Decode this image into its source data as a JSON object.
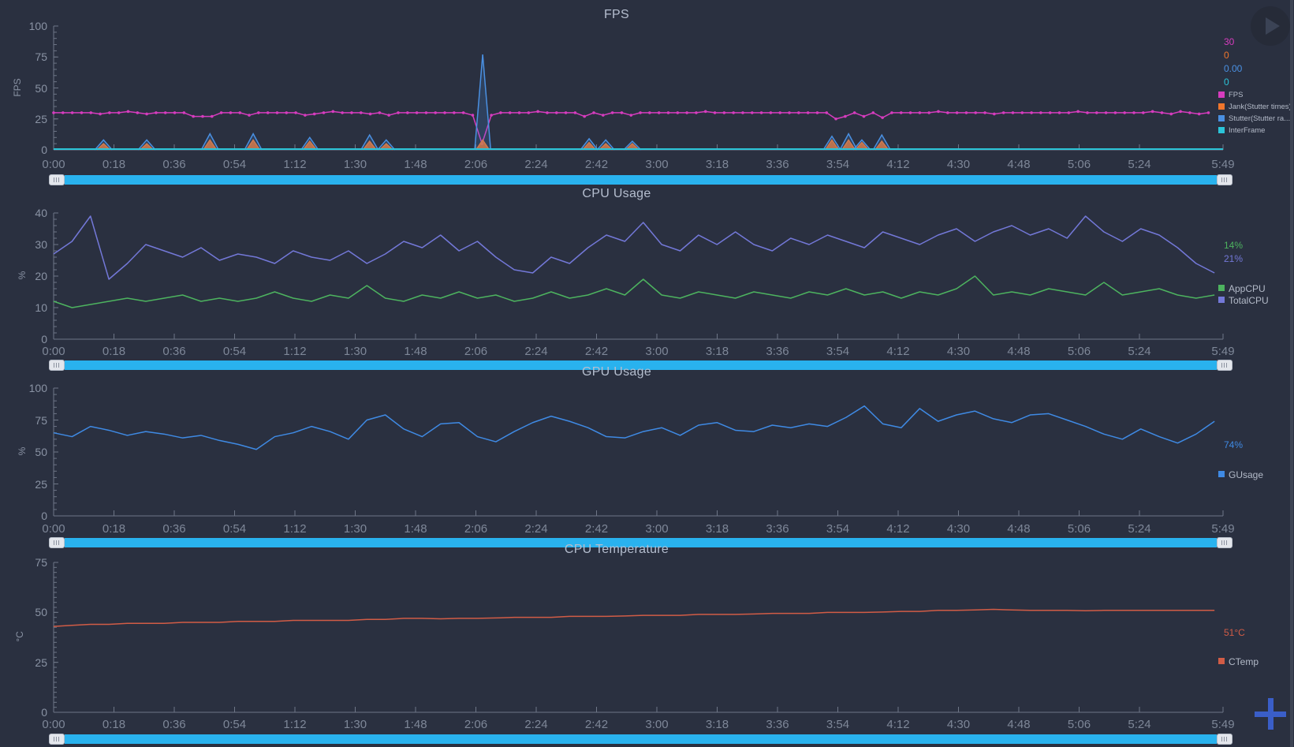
{
  "ui": {
    "background": "#2a3040",
    "scrollbar": {
      "bar_color": "#29b2ee",
      "handle_color": "#e3e6ec"
    },
    "accent_plus": "#3a5ec8"
  },
  "time_axis": {
    "labels": [
      "0:00",
      "0:18",
      "0:36",
      "0:54",
      "1:12",
      "1:30",
      "1:48",
      "2:06",
      "2:24",
      "2:42",
      "3:00",
      "3:18",
      "3:36",
      "3:54",
      "4:12",
      "4:30",
      "4:48",
      "5:06",
      "5:24",
      "5:49"
    ],
    "start": "0:00",
    "end": "5:49",
    "duration_seconds": 349
  },
  "chart_data": [
    {
      "type": "line",
      "title": "FPS",
      "ylabel": "FPS",
      "ylim": [
        0,
        100
      ],
      "yticks": [
        0,
        25,
        50,
        75,
        100
      ],
      "legend_position": "right",
      "grid": false,
      "series": [
        {
          "name": "FPS",
          "color": "#d63cbe",
          "current": "30",
          "style": "dotted-line",
          "sample_interval_s": 2.8,
          "values": [
            30,
            30,
            30,
            30,
            30,
            29,
            30,
            30,
            31,
            30,
            29,
            30,
            30,
            30,
            30,
            27,
            27,
            27,
            30,
            30,
            30,
            28,
            30,
            30,
            30,
            30,
            30,
            28,
            29,
            30,
            31,
            30,
            30,
            30,
            29,
            30,
            28,
            30,
            30,
            30,
            30,
            30,
            30,
            30,
            30,
            28,
            5,
            28,
            30,
            30,
            30,
            30,
            31,
            30,
            30,
            30,
            30,
            27,
            30,
            28,
            30,
            30,
            28,
            30,
            30,
            30,
            30,
            30,
            30,
            30,
            31,
            30,
            30,
            30,
            30,
            30,
            30,
            30,
            30,
            30,
            30,
            30,
            30,
            30,
            25,
            27,
            30,
            27,
            30,
            26,
            30,
            30,
            30,
            30,
            30,
            31,
            30,
            30,
            30,
            30,
            30,
            29,
            30,
            30,
            30,
            30,
            30,
            30,
            30,
            30,
            31,
            30,
            30,
            30,
            30,
            30,
            30,
            30,
            31,
            30,
            29,
            31,
            30,
            29,
            30
          ]
        },
        {
          "name": "Jank(Stutter times)",
          "color": "#f0762c",
          "current": "0",
          "style": "spikes",
          "spikes": [
            [
              15,
              5
            ],
            [
              28,
              5
            ],
            [
              47,
              8
            ],
            [
              60,
              8
            ],
            [
              77,
              7
            ],
            [
              95,
              7
            ],
            [
              100,
              5
            ],
            [
              129,
              8
            ],
            [
              161,
              6
            ],
            [
              166,
              5
            ],
            [
              174,
              5
            ],
            [
              234,
              8
            ],
            [
              239,
              8
            ],
            [
              243,
              6
            ],
            [
              249,
              7
            ]
          ]
        },
        {
          "name": "Stutter(Stutter ra...",
          "color": "#4a90e2",
          "current": "0.00",
          "style": "spikes",
          "spikes": [
            [
              15,
              8
            ],
            [
              28,
              8
            ],
            [
              47,
              13
            ],
            [
              60,
              13
            ],
            [
              77,
              10
            ],
            [
              95,
              12
            ],
            [
              100,
              8
            ],
            [
              129,
              77
            ],
            [
              161,
              9
            ],
            [
              166,
              8
            ],
            [
              174,
              7
            ],
            [
              234,
              11
            ],
            [
              239,
              13
            ],
            [
              243,
              8
            ],
            [
              249,
              12
            ]
          ]
        },
        {
          "name": "InterFrame",
          "color": "#2bc4d8",
          "current": "0",
          "style": "flat",
          "value": 0
        }
      ]
    },
    {
      "type": "line",
      "title": "CPU Usage",
      "ylabel": "%",
      "ylim": [
        0,
        40
      ],
      "yticks": [
        0,
        10,
        20,
        30,
        40
      ],
      "legend_position": "right",
      "grid": false,
      "series": [
        {
          "name": "AppCPU",
          "color": "#4db35f",
          "current": "14%",
          "style": "line",
          "sample_interval_s": 5.54,
          "values": [
            12,
            10,
            11,
            12,
            13,
            12,
            13,
            14,
            12,
            13,
            12,
            13,
            15,
            13,
            12,
            14,
            13,
            17,
            13,
            12,
            14,
            13,
            15,
            13,
            14,
            12,
            13,
            15,
            13,
            14,
            16,
            14,
            19,
            14,
            13,
            15,
            14,
            13,
            15,
            14,
            13,
            15,
            14,
            16,
            14,
            15,
            13,
            15,
            14,
            16,
            20,
            14,
            15,
            14,
            16,
            15,
            14,
            18,
            14,
            15,
            16,
            14,
            13,
            14
          ]
        },
        {
          "name": "TotalCPU",
          "color": "#7378d8",
          "current": "21%",
          "style": "line",
          "sample_interval_s": 5.54,
          "values": [
            27,
            31,
            39,
            19,
            24,
            30,
            28,
            26,
            29,
            25,
            27,
            26,
            24,
            28,
            26,
            25,
            28,
            24,
            27,
            31,
            29,
            33,
            28,
            31,
            26,
            22,
            21,
            26,
            24,
            29,
            33,
            31,
            37,
            30,
            28,
            33,
            30,
            34,
            30,
            28,
            32,
            30,
            33,
            31,
            29,
            34,
            32,
            30,
            33,
            35,
            31,
            34,
            36,
            33,
            35,
            32,
            39,
            34,
            31,
            35,
            33,
            29,
            24,
            21
          ]
        }
      ]
    },
    {
      "type": "line",
      "title": "GPU Usage",
      "ylabel": "%",
      "ylim": [
        0,
        100
      ],
      "yticks": [
        0,
        25,
        50,
        75,
        100
      ],
      "legend_position": "right",
      "grid": false,
      "series": [
        {
          "name": "GUsage",
          "color": "#3f8ae4",
          "current": "74%",
          "style": "line",
          "sample_interval_s": 5.54,
          "values": [
            65,
            62,
            70,
            67,
            63,
            66,
            64,
            61,
            63,
            59,
            56,
            52,
            62,
            65,
            70,
            66,
            60,
            75,
            79,
            68,
            62,
            72,
            73,
            62,
            58,
            66,
            73,
            78,
            74,
            69,
            62,
            61,
            66,
            69,
            63,
            71,
            73,
            67,
            66,
            71,
            69,
            72,
            70,
            77,
            86,
            72,
            69,
            84,
            74,
            79,
            82,
            76,
            73,
            79,
            80,
            75,
            70,
            64,
            60,
            68,
            62,
            57,
            64,
            74
          ]
        }
      ]
    },
    {
      "type": "line",
      "title": "CPU Temperature",
      "ylabel": "°C",
      "ylim": [
        0,
        75
      ],
      "yticks": [
        0,
        25,
        50,
        75
      ],
      "legend_position": "right",
      "grid": false,
      "series": [
        {
          "name": "CTemp",
          "color": "#d15c46",
          "current": "51°C",
          "style": "line",
          "sample_interval_s": 5.54,
          "values": [
            43,
            43.5,
            44,
            44,
            44.5,
            44.5,
            44.5,
            45,
            45,
            45,
            45.5,
            45.5,
            45.5,
            46,
            46,
            46,
            46,
            46.5,
            46.5,
            47,
            47,
            46.8,
            47,
            47,
            47.2,
            47.5,
            47.5,
            47.5,
            48,
            48,
            48,
            48.2,
            48.5,
            48.5,
            48.5,
            49,
            49,
            49,
            49.2,
            49.5,
            49.5,
            49.5,
            50,
            50,
            50,
            50.2,
            50.5,
            50.5,
            51,
            51,
            51.2,
            51.5,
            51.2,
            51,
            51,
            51,
            50.8,
            51,
            51,
            51,
            51,
            51,
            51,
            51
          ]
        }
      ]
    }
  ]
}
